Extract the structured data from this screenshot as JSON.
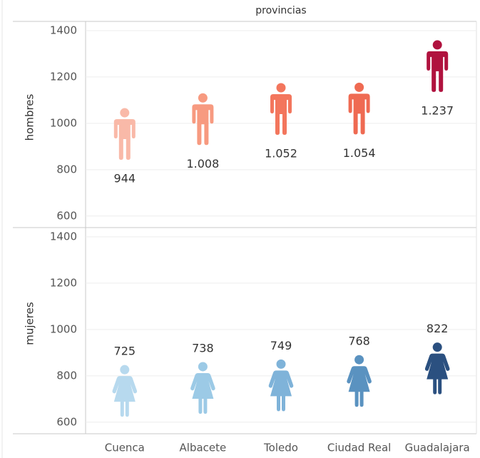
{
  "chart_data": {
    "type": "pictogram",
    "title": "provincias",
    "categories": [
      "Cuenca",
      "Albacete",
      "Toledo",
      "Ciudad Real",
      "Guadalajara"
    ],
    "series": [
      {
        "name": "hombres",
        "icon": "male",
        "values": [
          944,
          1008,
          1052,
          1054,
          1237
        ],
        "value_labels": [
          "944",
          "1.008",
          "1.052",
          "1.054",
          "1.237"
        ],
        "colors": [
          "#f9b9a8",
          "#f79a80",
          "#f3765d",
          "#ef6a52",
          "#b0123e"
        ]
      },
      {
        "name": "mujeres",
        "icon": "female",
        "values": [
          725,
          738,
          749,
          768,
          822
        ],
        "value_labels": [
          "725",
          "738",
          "749",
          "768",
          "822"
        ],
        "colors": [
          "#b7d9ee",
          "#9ccae6",
          "#7fb3d9",
          "#5a92c0",
          "#2b5080"
        ]
      }
    ],
    "ylim": [
      550,
      1440
    ],
    "yticks": [
      600,
      800,
      1000,
      1200,
      1400
    ],
    "grid": true
  }
}
